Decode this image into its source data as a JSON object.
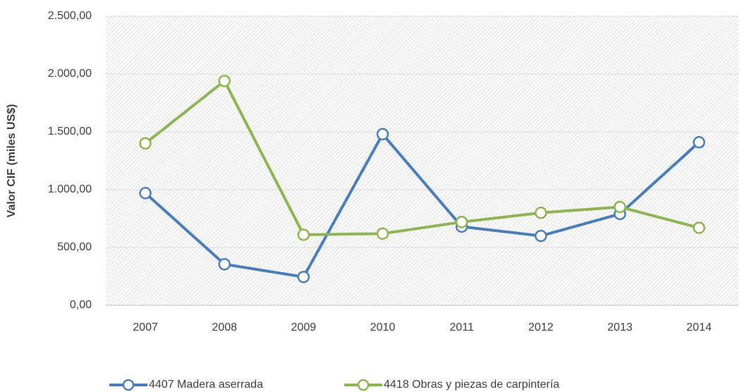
{
  "chart_data": {
    "type": "line",
    "y_label": "Valor CIF (miles US$)",
    "categories": [
      "2007",
      "2008",
      "2009",
      "2010",
      "2011",
      "2012",
      "2013",
      "2014"
    ],
    "series": [
      {
        "name": "4407 Madera aserrada",
        "color": "#4a7ebb",
        "values": [
          970,
          355,
          245,
          1480,
          680,
          600,
          790,
          1410
        ]
      },
      {
        "name": "4418 Obras y piezas de carpintería",
        "color": "#8db650",
        "values": [
          1400,
          1940,
          610,
          620,
          720,
          800,
          850,
          670
        ]
      }
    ],
    "ylim": [
      0,
      2500
    ],
    "yticks": [
      {
        "value": 0,
        "label": "0,00"
      },
      {
        "value": 500,
        "label": "500,00"
      },
      {
        "value": 1000,
        "label": "1.000,00"
      },
      {
        "value": 1500,
        "label": "1.500,00"
      },
      {
        "value": 2000,
        "label": "2.000,00"
      },
      {
        "value": 2500,
        "label": "2.500,00"
      }
    ],
    "grid": true,
    "legend": "bottom"
  }
}
